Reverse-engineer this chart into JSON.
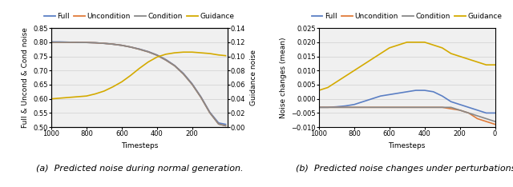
{
  "left_plot": {
    "xlabel": "Timesteps",
    "ylabel_left": "Full & Uncond & Cond noise",
    "ylabel_right": "Guidance noise",
    "xlim": [
      1000,
      0
    ],
    "ylim_left": [
      0.5,
      0.85
    ],
    "ylim_right": [
      0,
      0.14
    ],
    "yticks_left": [
      0.5,
      0.55,
      0.6,
      0.65,
      0.7,
      0.75,
      0.8,
      0.85
    ],
    "yticks_right": [
      0,
      0.02,
      0.04,
      0.06,
      0.08,
      0.1,
      0.12,
      0.14
    ],
    "xticks": [
      1000,
      800,
      600,
      400,
      200
    ],
    "caption": "(a)  Predicted noise during normal generation.",
    "series": {
      "Full": {
        "x": [
          1000,
          950,
          900,
          850,
          800,
          750,
          700,
          650,
          600,
          550,
          500,
          450,
          400,
          350,
          300,
          250,
          200,
          150,
          100,
          50,
          10
        ],
        "y": [
          0.801,
          0.801,
          0.8,
          0.8,
          0.799,
          0.798,
          0.796,
          0.793,
          0.789,
          0.783,
          0.776,
          0.767,
          0.755,
          0.739,
          0.718,
          0.69,
          0.653,
          0.607,
          0.553,
          0.515,
          0.51
        ],
        "color": "#5b7fc4",
        "axis": "left"
      },
      "Uncondition": {
        "x": [
          1000,
          950,
          900,
          850,
          800,
          750,
          700,
          650,
          600,
          550,
          500,
          450,
          400,
          350,
          300,
          250,
          200,
          150,
          100,
          50,
          10
        ],
        "y": [
          0.8,
          0.8,
          0.8,
          0.799,
          0.799,
          0.798,
          0.796,
          0.793,
          0.789,
          0.783,
          0.775,
          0.766,
          0.754,
          0.737,
          0.717,
          0.688,
          0.651,
          0.605,
          0.551,
          0.511,
          0.505
        ],
        "color": "#e07b39",
        "axis": "left"
      },
      "Condition": {
        "x": [
          1000,
          950,
          900,
          850,
          800,
          750,
          700,
          650,
          600,
          550,
          500,
          450,
          400,
          350,
          300,
          250,
          200,
          150,
          100,
          50,
          10
        ],
        "y": [
          0.8,
          0.8,
          0.8,
          0.799,
          0.799,
          0.798,
          0.796,
          0.793,
          0.789,
          0.783,
          0.775,
          0.766,
          0.754,
          0.737,
          0.717,
          0.688,
          0.651,
          0.605,
          0.551,
          0.511,
          0.505
        ],
        "color": "#888888",
        "axis": "left"
      },
      "Guidance": {
        "x": [
          1000,
          950,
          900,
          850,
          800,
          750,
          700,
          650,
          600,
          550,
          500,
          450,
          400,
          350,
          300,
          250,
          200,
          150,
          100,
          50,
          10
        ],
        "y": [
          0.04,
          0.041,
          0.042,
          0.043,
          0.044,
          0.047,
          0.051,
          0.057,
          0.064,
          0.073,
          0.083,
          0.092,
          0.099,
          0.103,
          0.105,
          0.106,
          0.106,
          0.105,
          0.104,
          0.102,
          0.101
        ],
        "color": "#d4aa00",
        "axis": "right"
      }
    }
  },
  "right_plot": {
    "xlabel": "Timesteps",
    "ylabel_left": "Noise changes (mean)",
    "xlim": [
      1000,
      0
    ],
    "ylim_left": [
      -0.01,
      0.025
    ],
    "yticks_left": [
      -0.01,
      -0.005,
      0,
      0.005,
      0.01,
      0.015,
      0.02,
      0.025
    ],
    "xticks": [
      1000,
      800,
      600,
      400,
      200,
      0
    ],
    "caption": "(b)  Predicted noise changes under perturbations.",
    "series": {
      "Full": {
        "x": [
          1000,
          950,
          900,
          850,
          800,
          750,
          700,
          650,
          600,
          550,
          500,
          450,
          400,
          350,
          300,
          250,
          200,
          150,
          100,
          50,
          0
        ],
        "y": [
          -0.003,
          -0.003,
          -0.0028,
          -0.0025,
          -0.002,
          -0.001,
          0.0,
          0.001,
          0.0015,
          0.002,
          0.0025,
          0.003,
          0.003,
          0.0025,
          0.001,
          -0.001,
          -0.002,
          -0.003,
          -0.004,
          -0.005,
          -0.005
        ],
        "color": "#5b7fc4"
      },
      "Uncondition": {
        "x": [
          1000,
          950,
          900,
          850,
          800,
          750,
          700,
          650,
          600,
          550,
          500,
          450,
          400,
          350,
          300,
          250,
          200,
          150,
          100,
          50,
          0
        ],
        "y": [
          -0.003,
          -0.003,
          -0.003,
          -0.003,
          -0.003,
          -0.003,
          -0.003,
          -0.003,
          -0.003,
          -0.003,
          -0.003,
          -0.003,
          -0.003,
          -0.003,
          -0.003,
          -0.0035,
          -0.004,
          -0.005,
          -0.007,
          -0.008,
          -0.009
        ],
        "color": "#e07b39"
      },
      "Condition": {
        "x": [
          1000,
          950,
          900,
          850,
          800,
          750,
          700,
          650,
          600,
          550,
          500,
          450,
          400,
          350,
          300,
          250,
          200,
          150,
          100,
          50,
          0
        ],
        "y": [
          -0.003,
          -0.003,
          -0.003,
          -0.003,
          -0.003,
          -0.003,
          -0.003,
          -0.003,
          -0.003,
          -0.003,
          -0.003,
          -0.003,
          -0.003,
          -0.003,
          -0.003,
          -0.003,
          -0.004,
          -0.005,
          -0.006,
          -0.007,
          -0.008
        ],
        "color": "#888888"
      },
      "Guidance": {
        "x": [
          1000,
          950,
          900,
          850,
          800,
          750,
          700,
          650,
          600,
          550,
          500,
          450,
          400,
          350,
          300,
          250,
          200,
          150,
          100,
          50,
          0
        ],
        "y": [
          0.003,
          0.004,
          0.006,
          0.008,
          0.01,
          0.012,
          0.014,
          0.016,
          0.018,
          0.019,
          0.02,
          0.02,
          0.02,
          0.019,
          0.018,
          0.016,
          0.015,
          0.014,
          0.013,
          0.012,
          0.012
        ],
        "color": "#d4aa00"
      }
    }
  },
  "legend": {
    "Full": "#5b7fc4",
    "Uncondition": "#e07b39",
    "Condition": "#888888",
    "Guidance": "#d4aa00"
  },
  "background_color": "#f0f0f0",
  "grid_color": "#d0d0d0",
  "fontsize": 6.5,
  "caption_fontsize": 8.0,
  "tick_fontsize": 6.0
}
